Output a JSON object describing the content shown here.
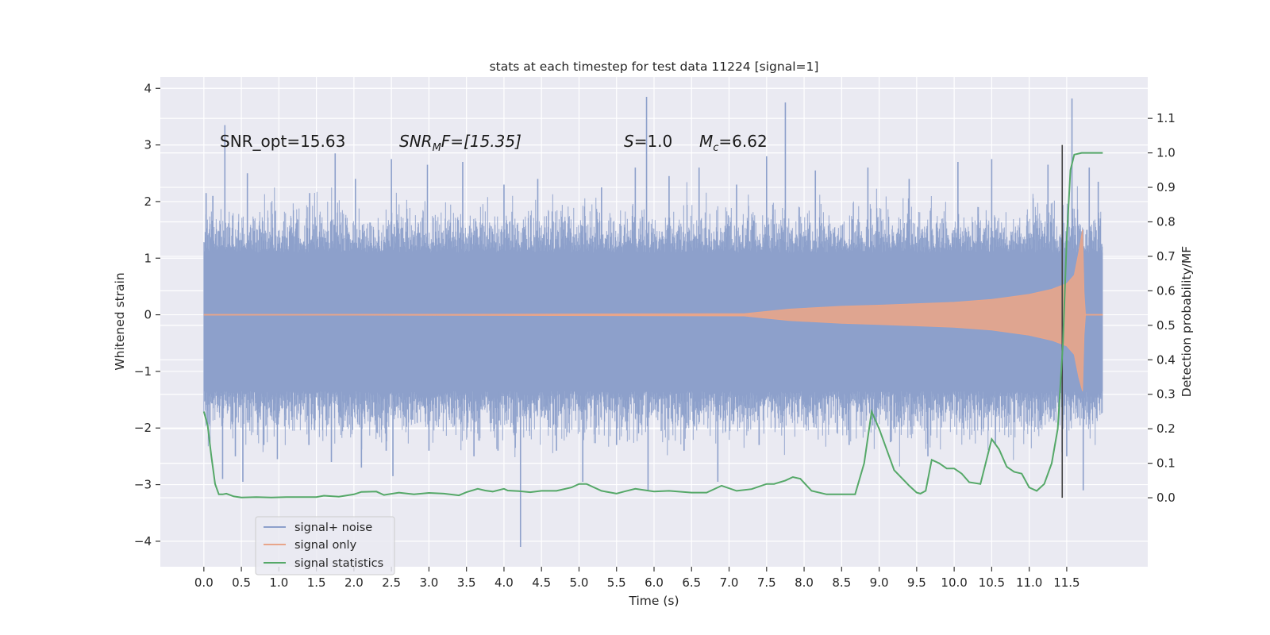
{
  "chart_data": {
    "type": "line",
    "title": "stats at each timestep for test data 11224 [signal=1]",
    "xlabel": "Time (s)",
    "ylabel_left": "Whitened strain",
    "ylabel_right": "Detection probability/MF",
    "xlim": [
      -0.58,
      12.58
    ],
    "ylim_left": [
      -4.45,
      4.2
    ],
    "ylim_right": [
      -0.2,
      1.22
    ],
    "x_ticks": [
      "0.0",
      "0.5",
      "1.0",
      "1.5",
      "2.0",
      "2.5",
      "3.0",
      "3.5",
      "4.0",
      "4.5",
      "5.0",
      "5.5",
      "6.0",
      "6.5",
      "7.0",
      "7.5",
      "8.0",
      "8.5",
      "9.0",
      "9.5",
      "10.0",
      "10.5",
      "11.0",
      "11.5"
    ],
    "y_ticks_left": [
      "4",
      "3",
      "2",
      "1",
      "0",
      "−1",
      "−2",
      "−3",
      "−4"
    ],
    "y_ticks_right": [
      "1.1",
      "1.0",
      "0.9",
      "0.8",
      "0.7",
      "0.6",
      "0.5",
      "0.4",
      "0.3",
      "0.2",
      "0.1",
      "0.0"
    ],
    "grid": true,
    "legend_position": "lower-left",
    "colors": {
      "background": "#eaeaf2",
      "grid": "#ffffff",
      "noise": "#8da0cb",
      "signal": "#e8a58a",
      "stats": "#55a868",
      "marker": "#444444"
    },
    "annotations": {
      "snr_opt": "SNR_opt=15.63",
      "snr_mf_a": "SNR",
      "snr_mf_sub": "M",
      "snr_mf_b": "F=[15.35]",
      "s_sym": "S",
      "s_val": "=1.0",
      "mc_sym": "M",
      "mc_sub": "c",
      "mc_val": "=6.62"
    },
    "marker_line_x": 11.44,
    "series": [
      {
        "name": "signal+ noise",
        "axis": "left",
        "x_range": [
          0.0,
          11.98
        ],
        "typical_range": [
          -1.35,
          1.1
        ],
        "spikes": [
          {
            "x": 0.03,
            "y": 2.15
          },
          {
            "x": 0.08,
            "y": -1.9
          },
          {
            "x": 0.12,
            "y": 2.1
          },
          {
            "x": 0.25,
            "y": -2.9
          },
          {
            "x": 0.28,
            "y": 3.35
          },
          {
            "x": 0.42,
            "y": -2.5
          },
          {
            "x": 0.52,
            "y": -2.95
          },
          {
            "x": 0.58,
            "y": 2.5
          },
          {
            "x": 0.8,
            "y": -2.3
          },
          {
            "x": 0.98,
            "y": -2.55
          },
          {
            "x": 1.4,
            "y": -2.3
          },
          {
            "x": 1.41,
            "y": 2.15
          },
          {
            "x": 1.7,
            "y": -2.6
          },
          {
            "x": 1.75,
            "y": 2.85
          },
          {
            "x": 2.02,
            "y": 2.4
          },
          {
            "x": 2.1,
            "y": -2.7
          },
          {
            "x": 2.43,
            "y": -2.4
          },
          {
            "x": 2.5,
            "y": 2.75
          },
          {
            "x": 2.52,
            "y": -2.85
          },
          {
            "x": 2.98,
            "y": 2.65
          },
          {
            "x": 3.0,
            "y": -2.4
          },
          {
            "x": 3.45,
            "y": 2.7
          },
          {
            "x": 3.6,
            "y": -2.5
          },
          {
            "x": 3.92,
            "y": -2.4
          },
          {
            "x": 4.0,
            "y": 2.3
          },
          {
            "x": 4.15,
            "y": -2.35
          },
          {
            "x": 4.22,
            "y": -4.1
          },
          {
            "x": 4.45,
            "y": 2.4
          },
          {
            "x": 4.7,
            "y": -2.4
          },
          {
            "x": 5.05,
            "y": -2.95
          },
          {
            "x": 5.3,
            "y": 2.25
          },
          {
            "x": 5.5,
            "y": -2.3
          },
          {
            "x": 5.75,
            "y": 2.6
          },
          {
            "x": 5.9,
            "y": 3.85
          },
          {
            "x": 5.92,
            "y": -3.1
          },
          {
            "x": 6.2,
            "y": 2.45
          },
          {
            "x": 6.4,
            "y": -2.4
          },
          {
            "x": 6.6,
            "y": 2.6
          },
          {
            "x": 6.85,
            "y": -2.95
          },
          {
            "x": 7.1,
            "y": 2.3
          },
          {
            "x": 7.4,
            "y": -2.3
          },
          {
            "x": 7.5,
            "y": 2.8
          },
          {
            "x": 7.75,
            "y": 3.75
          },
          {
            "x": 8.15,
            "y": 2.55
          },
          {
            "x": 8.6,
            "y": -2.3
          },
          {
            "x": 8.85,
            "y": 2.6
          },
          {
            "x": 9.15,
            "y": -2.25
          },
          {
            "x": 9.4,
            "y": 2.4
          },
          {
            "x": 9.65,
            "y": -2.5
          },
          {
            "x": 10.05,
            "y": 2.7
          },
          {
            "x": 10.5,
            "y": 2.75
          },
          {
            "x": 10.55,
            "y": -2.3
          },
          {
            "x": 11.25,
            "y": 2.65
          },
          {
            "x": 11.5,
            "y": -2.5
          },
          {
            "x": 11.57,
            "y": 3.82
          },
          {
            "x": 11.72,
            "y": -3.1
          },
          {
            "x": 11.8,
            "y": 2.6
          },
          {
            "x": 11.92,
            "y": 2.35
          }
        ]
      },
      {
        "name": "signal only",
        "axis": "left",
        "description": "chirp envelope growing toward merger",
        "envelope": [
          {
            "t": 0.0,
            "a": 0.0
          },
          {
            "t": 7.2,
            "a": 0.02
          },
          {
            "t": 7.8,
            "a": 0.1
          },
          {
            "t": 8.5,
            "a": 0.15
          },
          {
            "t": 9.0,
            "a": 0.17
          },
          {
            "t": 10.0,
            "a": 0.22
          },
          {
            "t": 10.5,
            "a": 0.27
          },
          {
            "t": 11.0,
            "a": 0.36
          },
          {
            "t": 11.3,
            "a": 0.45
          },
          {
            "t": 11.5,
            "a": 0.55
          },
          {
            "t": 11.6,
            "a": 0.7
          },
          {
            "t": 11.66,
            "a": 1.1
          },
          {
            "t": 11.71,
            "a": 1.5
          },
          {
            "t": 11.73,
            "a": 0.4
          },
          {
            "t": 11.75,
            "a": 0.0
          },
          {
            "t": 11.98,
            "a": 0.0
          }
        ]
      },
      {
        "name": "signal statistics",
        "axis": "right",
        "x": [
          0.0,
          0.05,
          0.1,
          0.15,
          0.2,
          0.25,
          0.3,
          0.4,
          0.5,
          0.7,
          0.9,
          1.1,
          1.3,
          1.5,
          1.6,
          1.8,
          2.0,
          2.1,
          2.3,
          2.4,
          2.6,
          2.8,
          3.0,
          3.2,
          3.4,
          3.5,
          3.65,
          3.75,
          3.85,
          4.0,
          4.05,
          4.2,
          4.35,
          4.5,
          4.7,
          4.9,
          5.0,
          5.1,
          5.3,
          5.5,
          5.6,
          5.75,
          6.0,
          6.2,
          6.5,
          6.7,
          6.9,
          7.1,
          7.3,
          7.5,
          7.6,
          7.75,
          7.85,
          7.95,
          8.1,
          8.3,
          8.5,
          8.6,
          8.68,
          8.8,
          8.9,
          9.0,
          9.2,
          9.4,
          9.5,
          9.55,
          9.62,
          9.7,
          9.8,
          9.9,
          10.0,
          10.1,
          10.2,
          10.35,
          10.5,
          10.6,
          10.7,
          10.8,
          10.9,
          11.0,
          11.1,
          11.2,
          11.3,
          11.38,
          11.45,
          11.5,
          11.55,
          11.6,
          11.7,
          11.8,
          11.9,
          11.98
        ],
        "values": [
          0.25,
          0.21,
          0.12,
          0.04,
          0.01,
          0.01,
          0.012,
          0.004,
          0.001,
          0.002,
          0.001,
          0.002,
          0.002,
          0.002,
          0.006,
          0.003,
          0.01,
          0.017,
          0.018,
          0.008,
          0.015,
          0.01,
          0.014,
          0.012,
          0.007,
          0.016,
          0.026,
          0.021,
          0.018,
          0.026,
          0.021,
          0.019,
          0.016,
          0.02,
          0.02,
          0.03,
          0.04,
          0.04,
          0.02,
          0.012,
          0.018,
          0.026,
          0.018,
          0.02,
          0.015,
          0.015,
          0.035,
          0.02,
          0.025,
          0.04,
          0.04,
          0.05,
          0.06,
          0.055,
          0.02,
          0.01,
          0.01,
          0.01,
          0.01,
          0.1,
          0.25,
          0.2,
          0.08,
          0.035,
          0.015,
          0.012,
          0.02,
          0.11,
          0.1,
          0.085,
          0.085,
          0.07,
          0.045,
          0.04,
          0.17,
          0.14,
          0.09,
          0.075,
          0.07,
          0.03,
          0.02,
          0.04,
          0.1,
          0.2,
          0.45,
          0.75,
          0.95,
          0.995,
          1.0,
          1.0,
          1.0,
          1.0
        ]
      }
    ]
  }
}
